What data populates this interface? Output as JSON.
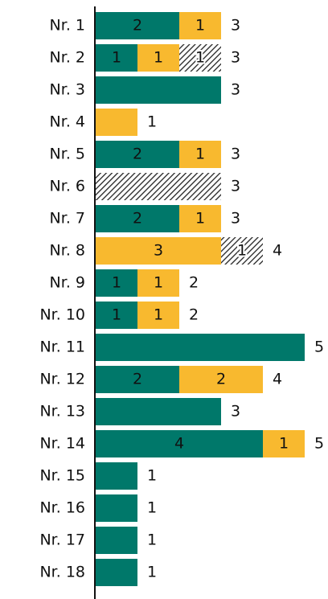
{
  "chart_data": {
    "type": "stacked-bar-horizontal",
    "categories": [
      "Nr. 1",
      "Nr. 2",
      "Nr. 3",
      "Nr. 4",
      "Nr. 5",
      "Nr. 6",
      "Nr. 7",
      "Nr. 8",
      "Nr. 9",
      "Nr. 10",
      "Nr. 11",
      "Nr. 12",
      "Nr. 13",
      "Nr. 14",
      "Nr. 15",
      "Nr. 16",
      "Nr. 17",
      "Nr. 18"
    ],
    "series": [
      {
        "color": "#00786a",
        "values": [
          2,
          1,
          3,
          0,
          2,
          0,
          2,
          0,
          1,
          1,
          5,
          2,
          3,
          4,
          1,
          1,
          1,
          1
        ]
      },
      {
        "color": "#f8b92f",
        "values": [
          1,
          1,
          0,
          1,
          1,
          0,
          1,
          3,
          1,
          1,
          0,
          2,
          0,
          1,
          0,
          0,
          0,
          0
        ]
      },
      {
        "color": "hatch",
        "values": [
          0,
          1,
          0,
          0,
          0,
          3,
          0,
          1,
          0,
          0,
          0,
          0,
          0,
          0,
          0,
          0,
          0,
          0
        ]
      }
    ],
    "totals": [
      3,
      3,
      3,
      1,
      3,
      3,
      3,
      4,
      2,
      2,
      5,
      4,
      3,
      5,
      1,
      1,
      1,
      1
    ]
  }
}
